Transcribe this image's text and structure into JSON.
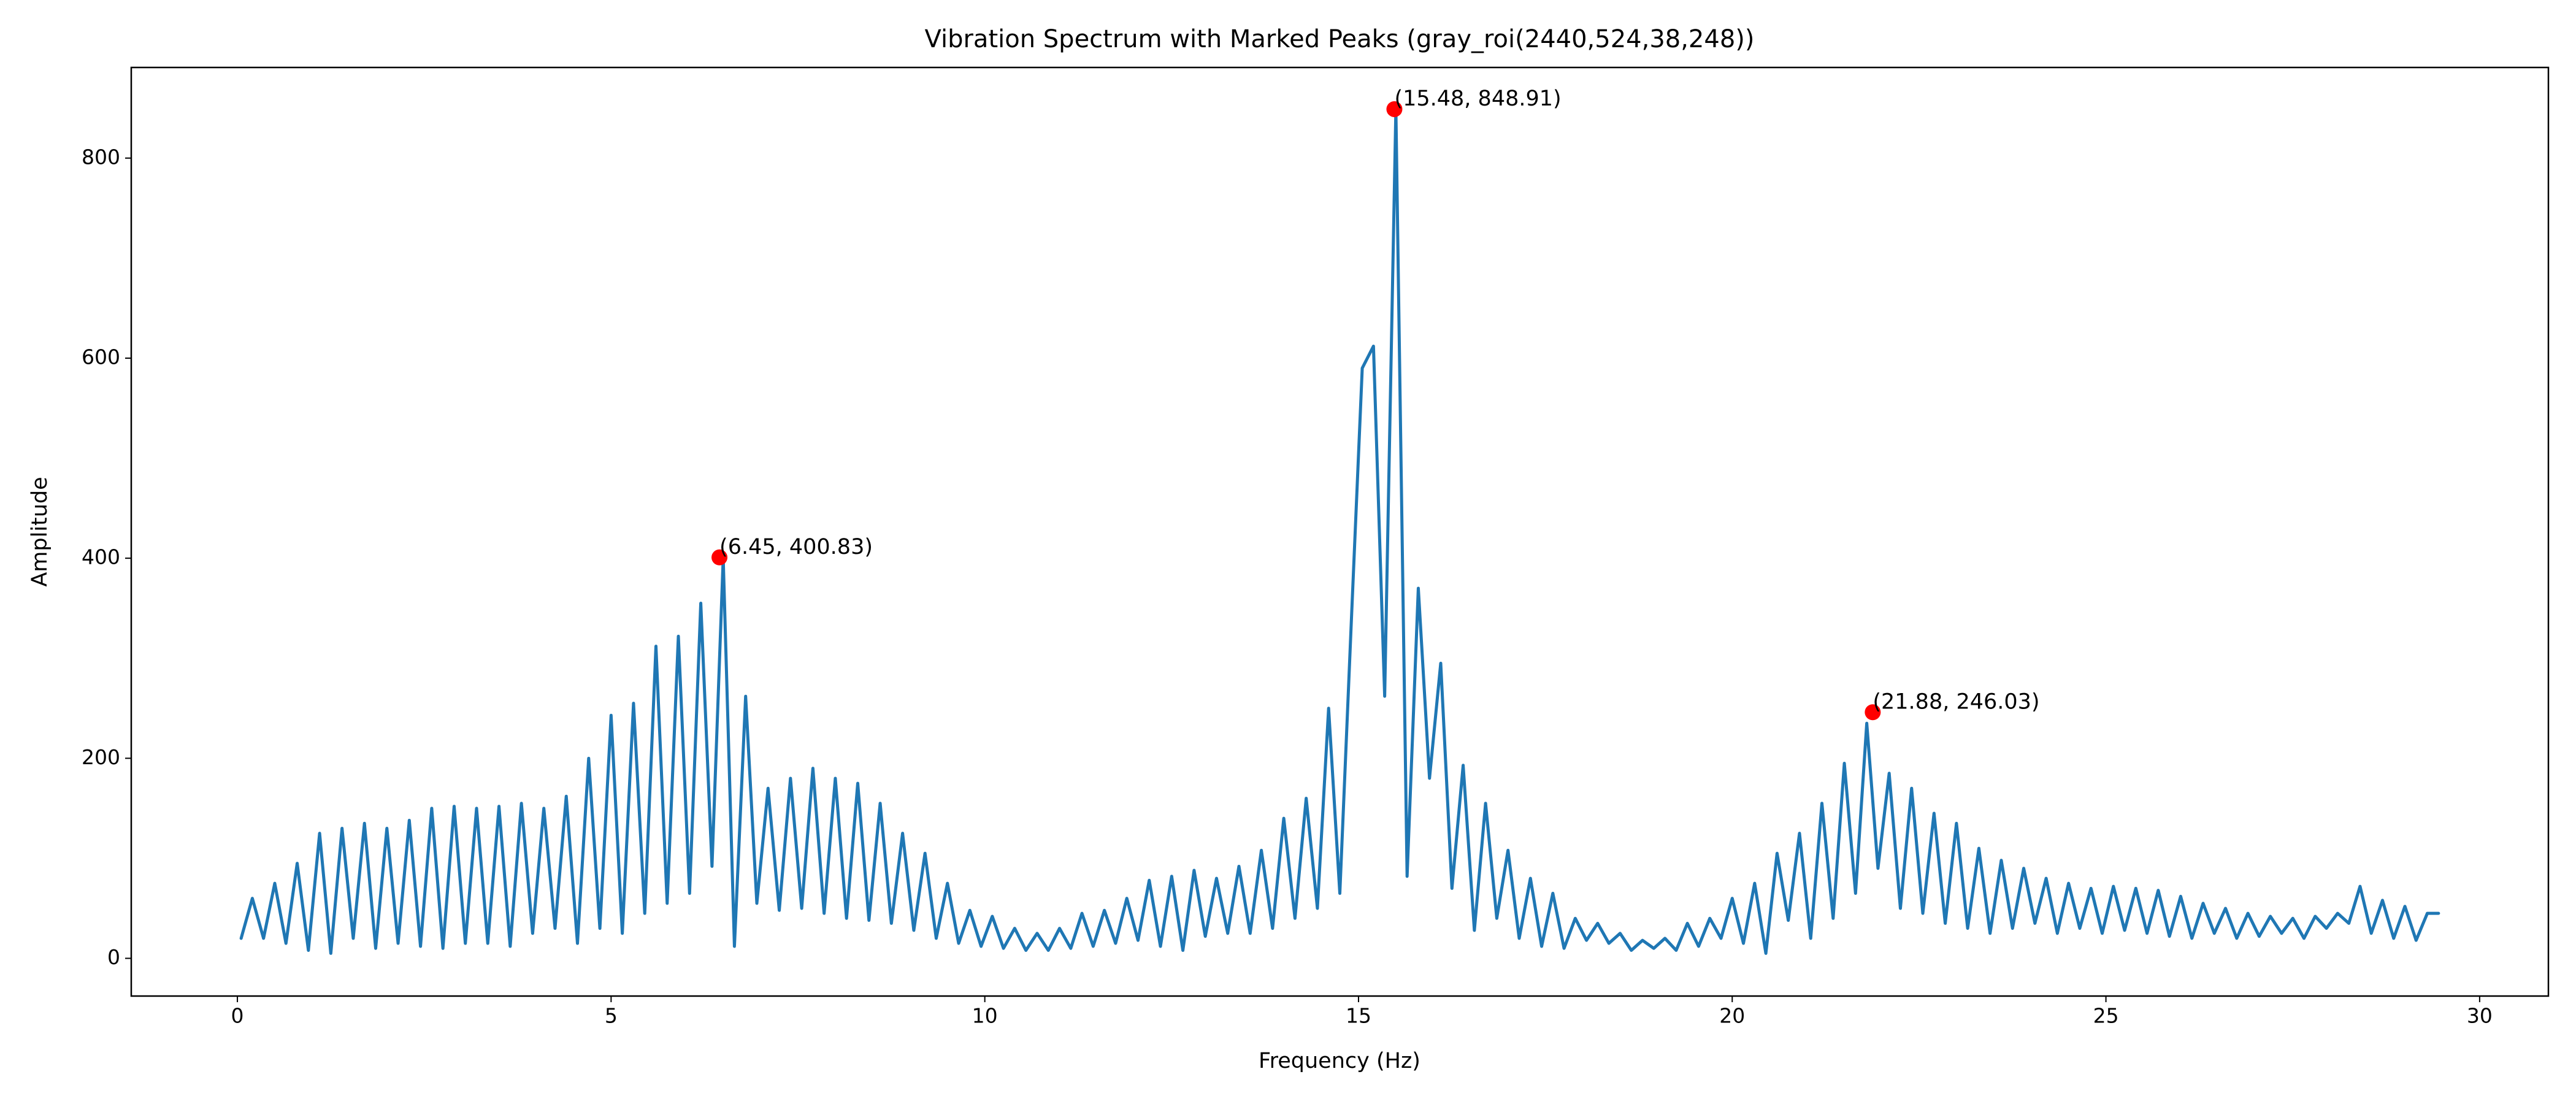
{
  "chart_data": {
    "type": "line",
    "title": "Vibration Spectrum with Marked Peaks (gray_roi(2440,524,38,248))",
    "x_label": "Frequency (Hz)",
    "y_label": "Amplitude",
    "xlim": [
      -1.42,
      30.92
    ],
    "ylim": [
      -37.7,
      890.6
    ],
    "xticks": [
      0,
      5,
      10,
      15,
      20,
      25,
      30
    ],
    "yticks": [
      0,
      200,
      400,
      600,
      800
    ],
    "grid": false,
    "series": [
      {
        "color": "#1f77b4",
        "x": [
          0.05,
          0.2,
          0.35,
          0.5,
          0.65,
          0.8,
          0.95,
          1.1,
          1.25,
          1.4,
          1.55,
          1.7,
          1.85,
          2.0,
          2.15,
          2.3,
          2.45,
          2.6,
          2.75,
          2.9,
          3.05,
          3.2,
          3.35,
          3.5,
          3.65,
          3.8,
          3.95,
          4.1,
          4.25,
          4.4,
          4.55,
          4.7,
          4.85,
          5.0,
          5.15,
          5.3,
          5.45,
          5.6,
          5.75,
          5.9,
          6.05,
          6.2,
          6.35,
          6.5,
          6.65,
          6.8,
          6.95,
          7.1,
          7.25,
          7.4,
          7.55,
          7.7,
          7.85,
          8.0,
          8.15,
          8.3,
          8.45,
          8.6,
          8.75,
          8.9,
          9.05,
          9.2,
          9.35,
          9.5,
          9.65,
          9.8,
          9.95,
          10.1,
          10.25,
          10.4,
          10.55,
          10.7,
          10.85,
          11.0,
          11.15,
          11.3,
          11.45,
          11.6,
          11.75,
          11.9,
          12.05,
          12.2,
          12.35,
          12.5,
          12.65,
          12.8,
          12.95,
          13.1,
          13.25,
          13.4,
          13.55,
          13.7,
          13.85,
          14.0,
          14.15,
          14.3,
          14.45,
          14.6,
          14.75,
          14.9,
          15.05,
          15.2,
          15.35,
          15.5,
          15.65,
          15.8,
          15.95,
          16.1,
          16.25,
          16.4,
          16.55,
          16.7,
          16.85,
          17.0,
          17.15,
          17.3,
          17.45,
          17.6,
          17.75,
          17.9,
          18.05,
          18.2,
          18.35,
          18.5,
          18.65,
          18.8,
          18.95,
          19.1,
          19.25,
          19.4,
          19.55,
          19.7,
          19.85,
          20.0,
          20.15,
          20.3,
          20.45,
          20.6,
          20.75,
          20.9,
          21.05,
          21.2,
          21.35,
          21.5,
          21.65,
          21.8,
          21.95,
          22.1,
          22.25,
          22.4,
          22.55,
          22.7,
          22.85,
          23.0,
          23.15,
          23.3,
          23.45,
          23.6,
          23.75,
          23.9,
          24.05,
          24.2,
          24.35,
          24.5,
          24.65,
          24.8,
          24.95,
          25.1,
          25.25,
          25.4,
          25.55,
          25.7,
          25.85,
          26.0,
          26.15,
          26.3,
          26.45,
          26.6,
          26.75,
          26.9,
          27.05,
          27.2,
          27.35,
          27.5,
          27.65,
          27.8,
          27.95,
          28.1,
          28.25,
          28.4,
          28.55,
          28.7,
          28.85,
          29.0,
          29.15,
          29.3,
          29.45
        ],
        "values": [
          20,
          60,
          20,
          75,
          15,
          95,
          8,
          125,
          5,
          130,
          20,
          135,
          10,
          130,
          15,
          138,
          12,
          150,
          10,
          152,
          15,
          150,
          15,
          152,
          12,
          155,
          25,
          150,
          30,
          162,
          15,
          200,
          30,
          243,
          25,
          255,
          45,
          312,
          55,
          322,
          65,
          355,
          92,
          400,
          12,
          262,
          55,
          170,
          48,
          180,
          50,
          190,
          45,
          180,
          40,
          175,
          38,
          155,
          35,
          125,
          28,
          105,
          20,
          75,
          15,
          48,
          12,
          42,
          10,
          30,
          8,
          25,
          8,
          30,
          10,
          45,
          12,
          48,
          15,
          60,
          18,
          78,
          12,
          82,
          8,
          88,
          22,
          80,
          25,
          92,
          25,
          108,
          30,
          140,
          40,
          160,
          50,
          250,
          65,
          330,
          590,
          612,
          262,
          849,
          82,
          370,
          180,
          295,
          70,
          193,
          28,
          155,
          40,
          108,
          20,
          80,
          12,
          65,
          10,
          40,
          18,
          35,
          15,
          25,
          8,
          18,
          10,
          20,
          8,
          35,
          12,
          40,
          20,
          60,
          15,
          75,
          5,
          105,
          38,
          125,
          20,
          155,
          40,
          195,
          65,
          235,
          90,
          185,
          50,
          170,
          45,
          145,
          35,
          135,
          30,
          110,
          25,
          98,
          30,
          90,
          35,
          80,
          25,
          75,
          30,
          70,
          25,
          72,
          28,
          70,
          25,
          68,
          22,
          62,
          20,
          55,
          25,
          50,
          20,
          45,
          22,
          42,
          25,
          40,
          20,
          42,
          30,
          45,
          35,
          72,
          25,
          58,
          20,
          52,
          18,
          45,
          45
        ]
      }
    ],
    "peaks": {
      "color": "#ff0000",
      "x": [
        6.45,
        15.48,
        21.88
      ],
      "values": [
        400.83,
        848.91,
        246.03
      ],
      "annotations": [
        "(6.45, 400.83)",
        "(15.48, 848.91)",
        "(21.88, 246.03)"
      ]
    }
  }
}
